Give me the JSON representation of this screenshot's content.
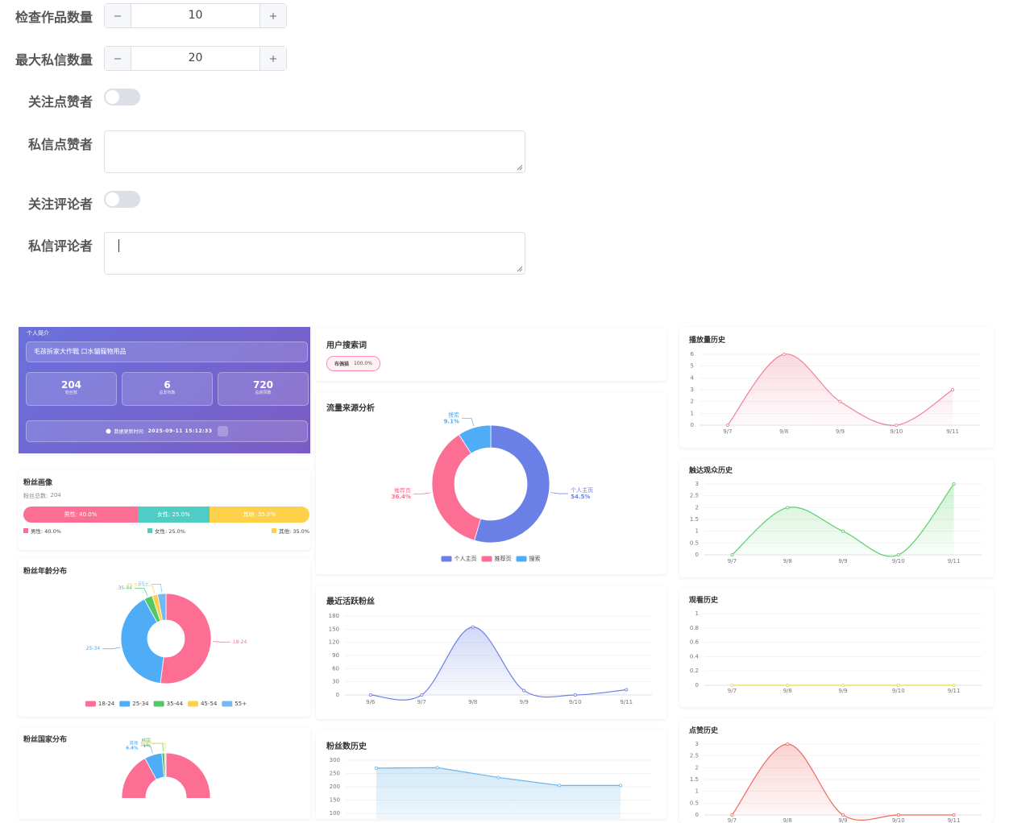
{
  "form": {
    "fields": [
      {
        "label": "检查作品数量",
        "value": 10
      },
      {
        "label": "最大私信数量",
        "value": 20
      },
      {
        "label": "关注点赞者",
        "enabled": false
      },
      {
        "label": "私信点赞者"
      },
      {
        "label": "关注评论者",
        "enabled": false
      },
      {
        "label": "私信评论者"
      }
    ]
  },
  "profile": {
    "title": "个人简介",
    "name": "毛孩拆家大作戰 口水貓寵物用品",
    "stats": [
      {
        "value": 204,
        "label": "粉丝数"
      },
      {
        "value": 6,
        "label": "总发布数"
      },
      {
        "value": 720,
        "label": "总获赞数"
      }
    ],
    "update_label": "数据更新时间:",
    "update_time": "2025-09-11 15:12:33"
  },
  "fan_portrait": {
    "title": "粉丝画像",
    "total_label": "粉丝总数:",
    "total": 204,
    "values": [
      40,
      25,
      35
    ],
    "value_labels": [
      "男性: 40.0%",
      "女性: 25.0%",
      "其他: 35.0%"
    ],
    "colors": [
      "#fc6e94",
      "#4ecdc4",
      "#fdd24a"
    ]
  },
  "search": {
    "title": "用户搜索词",
    "terms": [
      {
        "term": "布偶猫",
        "share": "100.0%"
      }
    ]
  },
  "chart_data": [
    {
      "type": "pie",
      "title": "粉丝年龄分布",
      "categories": [
        "18-24",
        "25-34",
        "35-44",
        "45-54",
        "55+"
      ],
      "values": [
        52,
        40,
        3,
        2,
        3
      ],
      "colors": [
        "#fc6e94",
        "#4facf7",
        "#52c76a",
        "#fdd24a",
        "#74b9f5"
      ],
      "legend": true
    },
    {
      "type": "pie",
      "title": "粉丝国家分布",
      "categories": [
        null,
        "其他",
        "韩国",
        null
      ],
      "values": [
        92.1,
        6.4,
        1,
        0.5
      ],
      "value_labels": [
        null,
        "6.4%",
        "1%",
        "0.5%"
      ],
      "colors": [
        "#fc6e94",
        "#4facf7",
        "#52c76a",
        "#fdd24a"
      ],
      "legend": false
    },
    {
      "type": "pie",
      "title": "流量来源分析",
      "categories": [
        "个人主页",
        "推荐页",
        "搜索"
      ],
      "values": [
        54.5,
        36.4,
        9.1
      ],
      "value_labels": [
        "54.5%",
        "36.4%",
        "9.1%"
      ],
      "colors": [
        "#6b80e6",
        "#fc6e94",
        "#4facf7"
      ],
      "legend": true
    },
    {
      "type": "line",
      "title": "最近活跃粉丝",
      "categories": [
        "9/6",
        "9/7",
        "9/8",
        "9/9",
        "9/10",
        "9/11"
      ],
      "series": [
        {
          "color": "#6b80e6",
          "values": [
            0,
            0,
            155,
            10,
            0,
            12
          ]
        }
      ],
      "ylim": [
        0,
        180
      ],
      "yticks": [
        0,
        30,
        60,
        90,
        120,
        150,
        180
      ],
      "grid": true
    },
    {
      "type": "line",
      "title": "粉丝数历史",
      "series": [
        {
          "color": "#6db6ec",
          "values": [
            270,
            272,
            235,
            205,
            205
          ]
        }
      ],
      "ylim": [
        0,
        300
      ],
      "yticks": [
        100,
        150,
        200,
        250,
        300
      ],
      "grid": true,
      "smooth": false
    },
    {
      "type": "line",
      "title": "播放量历史",
      "categories": [
        "9/7",
        "9/8",
        "9/9",
        "9/10",
        "9/11"
      ],
      "series": [
        {
          "color": "#f0809b",
          "values": [
            0,
            6,
            2,
            0,
            3
          ]
        }
      ],
      "ylim": [
        0,
        6
      ],
      "yticks": [
        0,
        1,
        2,
        3,
        4,
        5,
        6
      ],
      "grid": true
    },
    {
      "type": "line",
      "title": "触达观众历史",
      "categories": [
        "9/7",
        "9/8",
        "9/9",
        "9/10",
        "9/11"
      ],
      "series": [
        {
          "color": "#5ccf6b",
          "values": [
            0,
            2,
            1,
            0,
            3
          ]
        }
      ],
      "ylim": [
        0,
        3
      ],
      "yticks": [
        0,
        0.5,
        1,
        1.5,
        2,
        2.5,
        3
      ],
      "grid": true
    },
    {
      "type": "line",
      "title": "观看历史",
      "categories": [
        "9/7",
        "9/8",
        "9/9",
        "9/10",
        "9/11"
      ],
      "series": [
        {
          "color": "#f5d34a",
          "values": [
            0,
            0,
            0,
            0,
            0
          ]
        }
      ],
      "ylim": [
        0,
        1
      ],
      "yticks": [
        0,
        0.2,
        0.4,
        0.6,
        0.8,
        1
      ],
      "grid": true
    },
    {
      "type": "line",
      "title": "点赞历史",
      "categories": [
        "9/7",
        "9/8",
        "9/9",
        "9/10",
        "9/11"
      ],
      "series": [
        {
          "color": "#ee6a62",
          "values": [
            0,
            3,
            0,
            0,
            0
          ]
        }
      ],
      "ylim": [
        0,
        3
      ],
      "yticks": [
        0,
        0.5,
        1,
        1.5,
        2,
        2.5,
        3
      ],
      "grid": true
    }
  ]
}
